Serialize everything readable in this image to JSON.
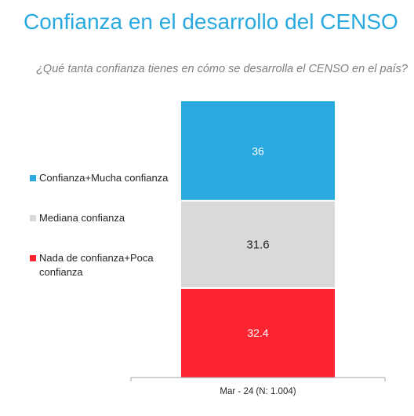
{
  "title": "Confianza en el desarrollo del CENSO",
  "subtitle": "¿Qué tanta confianza tienes en cómo se desarrolla el CENSO en el país?",
  "chart_data": {
    "type": "bar",
    "stacked": true,
    "stack_order": "top-to-bottom",
    "categories": [
      "Mar - 24 (N: 1.004)"
    ],
    "series": [
      {
        "name": "Confianza+Mucha confianza",
        "values": [
          36
        ],
        "color": "#29a9df",
        "label_color": "#ffffff"
      },
      {
        "name": "Mediana confianza",
        "values": [
          31.6
        ],
        "color": "#d9d9d9",
        "label_color": "#262626"
      },
      {
        "name": "Nada de confianza+Poca confianza",
        "values": [
          32.4
        ],
        "color": "#ff2432",
        "label_color": "#ffffff"
      }
    ],
    "ylim": [
      0,
      100
    ],
    "grid": false,
    "legend_position": "left"
  }
}
